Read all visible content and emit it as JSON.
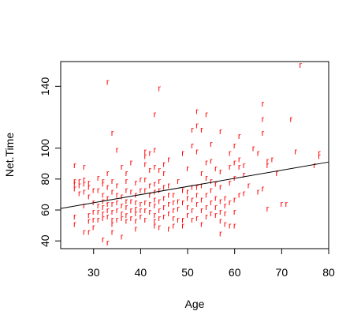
{
  "chart_data": {
    "type": "scatter",
    "title": "",
    "xlabel": "Age",
    "ylabel": "Net.Time",
    "xlim": [
      23,
      80
    ],
    "ylim": [
      35,
      156
    ],
    "x_ticks": [
      30,
      40,
      50,
      60,
      70,
      80
    ],
    "y_ticks": [
      40,
      60,
      80,
      100,
      140
    ],
    "grid": false,
    "point_symbol": "r",
    "point_color": "#ff0000",
    "fit_line": {
      "x": [
        23,
        80
      ],
      "y": [
        61,
        91
      ],
      "color": "#000000"
    },
    "points": [
      [
        26,
        89
      ],
      [
        26,
        79
      ],
      [
        26,
        77
      ],
      [
        26,
        74
      ],
      [
        26,
        56
      ],
      [
        26,
        51
      ],
      [
        27,
        79
      ],
      [
        27,
        76
      ],
      [
        27,
        71
      ],
      [
        28,
        88
      ],
      [
        28,
        80
      ],
      [
        28,
        77
      ],
      [
        28,
        72
      ],
      [
        28,
        63
      ],
      [
        28,
        46
      ],
      [
        29,
        78
      ],
      [
        29,
        75
      ],
      [
        29,
        69
      ],
      [
        29,
        57
      ],
      [
        29,
        53
      ],
      [
        29,
        46
      ],
      [
        30,
        73
      ],
      [
        30,
        65
      ],
      [
        30,
        59
      ],
      [
        30,
        54
      ],
      [
        30,
        49
      ],
      [
        31,
        81
      ],
      [
        31,
        73
      ],
      [
        31,
        63
      ],
      [
        31,
        59
      ],
      [
        31,
        54
      ],
      [
        32,
        79
      ],
      [
        32,
        77
      ],
      [
        32,
        70
      ],
      [
        32,
        66
      ],
      [
        32,
        62
      ],
      [
        32,
        58
      ],
      [
        32,
        55
      ],
      [
        32,
        41
      ],
      [
        33,
        143
      ],
      [
        33,
        84
      ],
      [
        33,
        75
      ],
      [
        33,
        68
      ],
      [
        33,
        64
      ],
      [
        33,
        60
      ],
      [
        33,
        56
      ],
      [
        33,
        39
      ],
      [
        34,
        110
      ],
      [
        34,
        79
      ],
      [
        34,
        72
      ],
      [
        34,
        64
      ],
      [
        34,
        59
      ],
      [
        34,
        54
      ],
      [
        34,
        51
      ],
      [
        34,
        46
      ],
      [
        35,
        99
      ],
      [
        35,
        76
      ],
      [
        35,
        70
      ],
      [
        35,
        65
      ],
      [
        35,
        60
      ],
      [
        35,
        54
      ],
      [
        36,
        88
      ],
      [
        36,
        69
      ],
      [
        36,
        63
      ],
      [
        36,
        58
      ],
      [
        36,
        55
      ],
      [
        36,
        43
      ],
      [
        37,
        84
      ],
      [
        37,
        79
      ],
      [
        37,
        73
      ],
      [
        37,
        66
      ],
      [
        37,
        62
      ],
      [
        37,
        57
      ],
      [
        37,
        53
      ],
      [
        38,
        91
      ],
      [
        38,
        72
      ],
      [
        38,
        66
      ],
      [
        38,
        60
      ],
      [
        38,
        55
      ],
      [
        39,
        78
      ],
      [
        39,
        70
      ],
      [
        39,
        65
      ],
      [
        39,
        61
      ],
      [
        39,
        58
      ],
      [
        39,
        53
      ],
      [
        39,
        48
      ],
      [
        40,
        80
      ],
      [
        40,
        73
      ],
      [
        40,
        64
      ],
      [
        40,
        60
      ],
      [
        40,
        56
      ],
      [
        41,
        98
      ],
      [
        41,
        95
      ],
      [
        41,
        90
      ],
      [
        41,
        80
      ],
      [
        41,
        73
      ],
      [
        41,
        65
      ],
      [
        41,
        60
      ],
      [
        41,
        54
      ],
      [
        42,
        97
      ],
      [
        42,
        86
      ],
      [
        42,
        76
      ],
      [
        42,
        70
      ],
      [
        42,
        64
      ],
      [
        42,
        59
      ],
      [
        43,
        122
      ],
      [
        43,
        99
      ],
      [
        43,
        88
      ],
      [
        43,
        77
      ],
      [
        43,
        72
      ],
      [
        43,
        67
      ],
      [
        43,
        63
      ],
      [
        43,
        57
      ],
      [
        43,
        53
      ],
      [
        43,
        50
      ],
      [
        44,
        139
      ],
      [
        44,
        86
      ],
      [
        44,
        79
      ],
      [
        44,
        73
      ],
      [
        44,
        66
      ],
      [
        44,
        60
      ],
      [
        44,
        55
      ],
      [
        44,
        49
      ],
      [
        45,
        90
      ],
      [
        45,
        84
      ],
      [
        45,
        75
      ],
      [
        45,
        68
      ],
      [
        45,
        62
      ],
      [
        45,
        56
      ],
      [
        46,
        93
      ],
      [
        46,
        76
      ],
      [
        46,
        70
      ],
      [
        46,
        64
      ],
      [
        46,
        58
      ],
      [
        46,
        48
      ],
      [
        47,
        70
      ],
      [
        47,
        65
      ],
      [
        47,
        60
      ],
      [
        47,
        55
      ],
      [
        47,
        50
      ],
      [
        48,
        79
      ],
      [
        48,
        66
      ],
      [
        48,
        61
      ],
      [
        48,
        54
      ],
      [
        49,
        97
      ],
      [
        49,
        73
      ],
      [
        49,
        65
      ],
      [
        49,
        54
      ],
      [
        49,
        50
      ],
      [
        50,
        87
      ],
      [
        50,
        72
      ],
      [
        50,
        68
      ],
      [
        50,
        62
      ],
      [
        50,
        57
      ],
      [
        51,
        112
      ],
      [
        51,
        102
      ],
      [
        51,
        75
      ],
      [
        51,
        67
      ],
      [
        51,
        60
      ],
      [
        51,
        54
      ],
      [
        52,
        124
      ],
      [
        52,
        115
      ],
      [
        52,
        98
      ],
      [
        52,
        75
      ],
      [
        52,
        70
      ],
      [
        52,
        64
      ],
      [
        52,
        55
      ],
      [
        53,
        112
      ],
      [
        53,
        84
      ],
      [
        53,
        76
      ],
      [
        53,
        67
      ],
      [
        53,
        60
      ],
      [
        53,
        51
      ],
      [
        54,
        122
      ],
      [
        54,
        91
      ],
      [
        54,
        81
      ],
      [
        54,
        70
      ],
      [
        54,
        62
      ],
      [
        54,
        56
      ],
      [
        55,
        103
      ],
      [
        55,
        92
      ],
      [
        55,
        79
      ],
      [
        55,
        73
      ],
      [
        55,
        65
      ],
      [
        55,
        58
      ],
      [
        56,
        87
      ],
      [
        56,
        77
      ],
      [
        56,
        68
      ],
      [
        56,
        62
      ],
      [
        56,
        57
      ],
      [
        57,
        111
      ],
      [
        57,
        85
      ],
      [
        57,
        75
      ],
      [
        57,
        66
      ],
      [
        57,
        59
      ],
      [
        57,
        53
      ],
      [
        57,
        45
      ],
      [
        58,
        68
      ],
      [
        58,
        63
      ],
      [
        58,
        58
      ],
      [
        58,
        51
      ],
      [
        59,
        97
      ],
      [
        59,
        88
      ],
      [
        59,
        78
      ],
      [
        59,
        65
      ],
      [
        59,
        50
      ],
      [
        60,
        102
      ],
      [
        60,
        91
      ],
      [
        60,
        81
      ],
      [
        60,
        67
      ],
      [
        60,
        59
      ],
      [
        60,
        50
      ],
      [
        61,
        108
      ],
      [
        61,
        93
      ],
      [
        61,
        88
      ],
      [
        61,
        70
      ],
      [
        62,
        89
      ],
      [
        62,
        83
      ],
      [
        62,
        71
      ],
      [
        63,
        76
      ],
      [
        64,
        100
      ],
      [
        65,
        97
      ],
      [
        65,
        72
      ],
      [
        66,
        129
      ],
      [
        66,
        119
      ],
      [
        66,
        110
      ],
      [
        66,
        74
      ],
      [
        67,
        92
      ],
      [
        67,
        89
      ],
      [
        67,
        61
      ],
      [
        68,
        93
      ],
      [
        69,
        84
      ],
      [
        70,
        64
      ],
      [
        71,
        64
      ],
      [
        72,
        119
      ],
      [
        73,
        98
      ],
      [
        74,
        154
      ],
      [
        77,
        89
      ],
      [
        78,
        97
      ],
      [
        78,
        95
      ]
    ]
  }
}
